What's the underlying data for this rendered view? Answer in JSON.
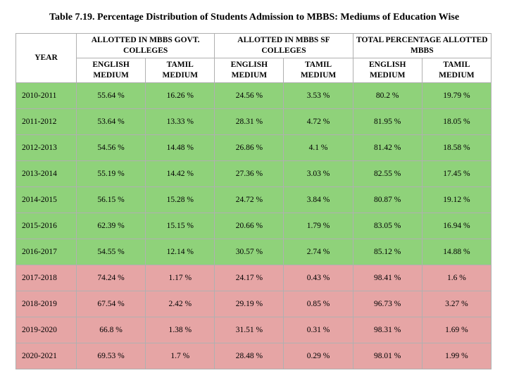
{
  "title": "Table 7.19. Percentage Distribution of Students Admission to MBBS: Mediums of Education Wise",
  "table": {
    "header_groups": [
      {
        "label": "YEAR",
        "rowspan": 2,
        "colspan": 1
      },
      {
        "label": "ALLOTTED IN MBBS GOVT. COLLEGES",
        "rowspan": 1,
        "colspan": 2
      },
      {
        "label": "ALLOTTED IN MBBS SF COLLEGES",
        "rowspan": 1,
        "colspan": 2
      },
      {
        "label": "TOTAL PERCENTAGE ALLOTTED MBBS",
        "rowspan": 1,
        "colspan": 2
      }
    ],
    "sub_headers": [
      "ENGLISH MEDIUM",
      "TAMIL MEDIUM",
      "ENGLISH MEDIUM",
      "TAMIL MEDIUM",
      "ENGLISH MEDIUM",
      "TAMIL MEDIUM"
    ],
    "row_colors": {
      "green": "#8fd27a",
      "pink": "#e6a5a5"
    },
    "rows": [
      {
        "year": "2010-2011",
        "cells": [
          "55.64 %",
          "16.26 %",
          "24.56 %",
          "3.53 %",
          "80.2 %",
          "19.79 %"
        ],
        "color": "green"
      },
      {
        "year": "2011-2012",
        "cells": [
          "53.64 %",
          "13.33 %",
          "28.31 %",
          "4.72 %",
          "81.95 %",
          "18.05 %"
        ],
        "color": "green"
      },
      {
        "year": "2012-2013",
        "cells": [
          "54.56 %",
          "14.48 %",
          "26.86 %",
          "4.1 %",
          "81.42 %",
          "18.58 %"
        ],
        "color": "green"
      },
      {
        "year": "2013-2014",
        "cells": [
          "55.19 %",
          "14.42 %",
          "27.36 %",
          "3.03 %",
          "82.55 %",
          "17.45 %"
        ],
        "color": "green"
      },
      {
        "year": "2014-2015",
        "cells": [
          "56.15 %",
          "15.28 %",
          "24.72 %",
          "3.84 %",
          "80.87 %",
          "19.12 %"
        ],
        "color": "green"
      },
      {
        "year": "2015-2016",
        "cells": [
          "62.39 %",
          "15.15 %",
          "20.66 %",
          "1.79 %",
          "83.05 %",
          "16.94 %"
        ],
        "color": "green"
      },
      {
        "year": "2016-2017",
        "cells": [
          "54.55 %",
          "12.14 %",
          "30.57 %",
          "2.74 %",
          "85.12 %",
          "14.88 %"
        ],
        "color": "green"
      },
      {
        "year": "2017-2018",
        "cells": [
          "74.24 %",
          "1.17 %",
          "24.17 %",
          "0.43 %",
          "98.41 %",
          "1.6 %"
        ],
        "color": "pink"
      },
      {
        "year": "2018-2019",
        "cells": [
          "67.54 %",
          "2.42 %",
          "29.19 %",
          "0.85 %",
          "96.73 %",
          "3.27 %"
        ],
        "color": "pink"
      },
      {
        "year": "2019-2020",
        "cells": [
          "66.8 %",
          "1.38 %",
          "31.51 %",
          "0.31 %",
          "98.31 %",
          "1.69 %"
        ],
        "color": "pink"
      },
      {
        "year": "2020-2021",
        "cells": [
          "69.53 %",
          "1.7 %",
          "28.48 %",
          "0.29 %",
          "98.01 %",
          "1.99 %"
        ],
        "color": "pink"
      }
    ]
  }
}
